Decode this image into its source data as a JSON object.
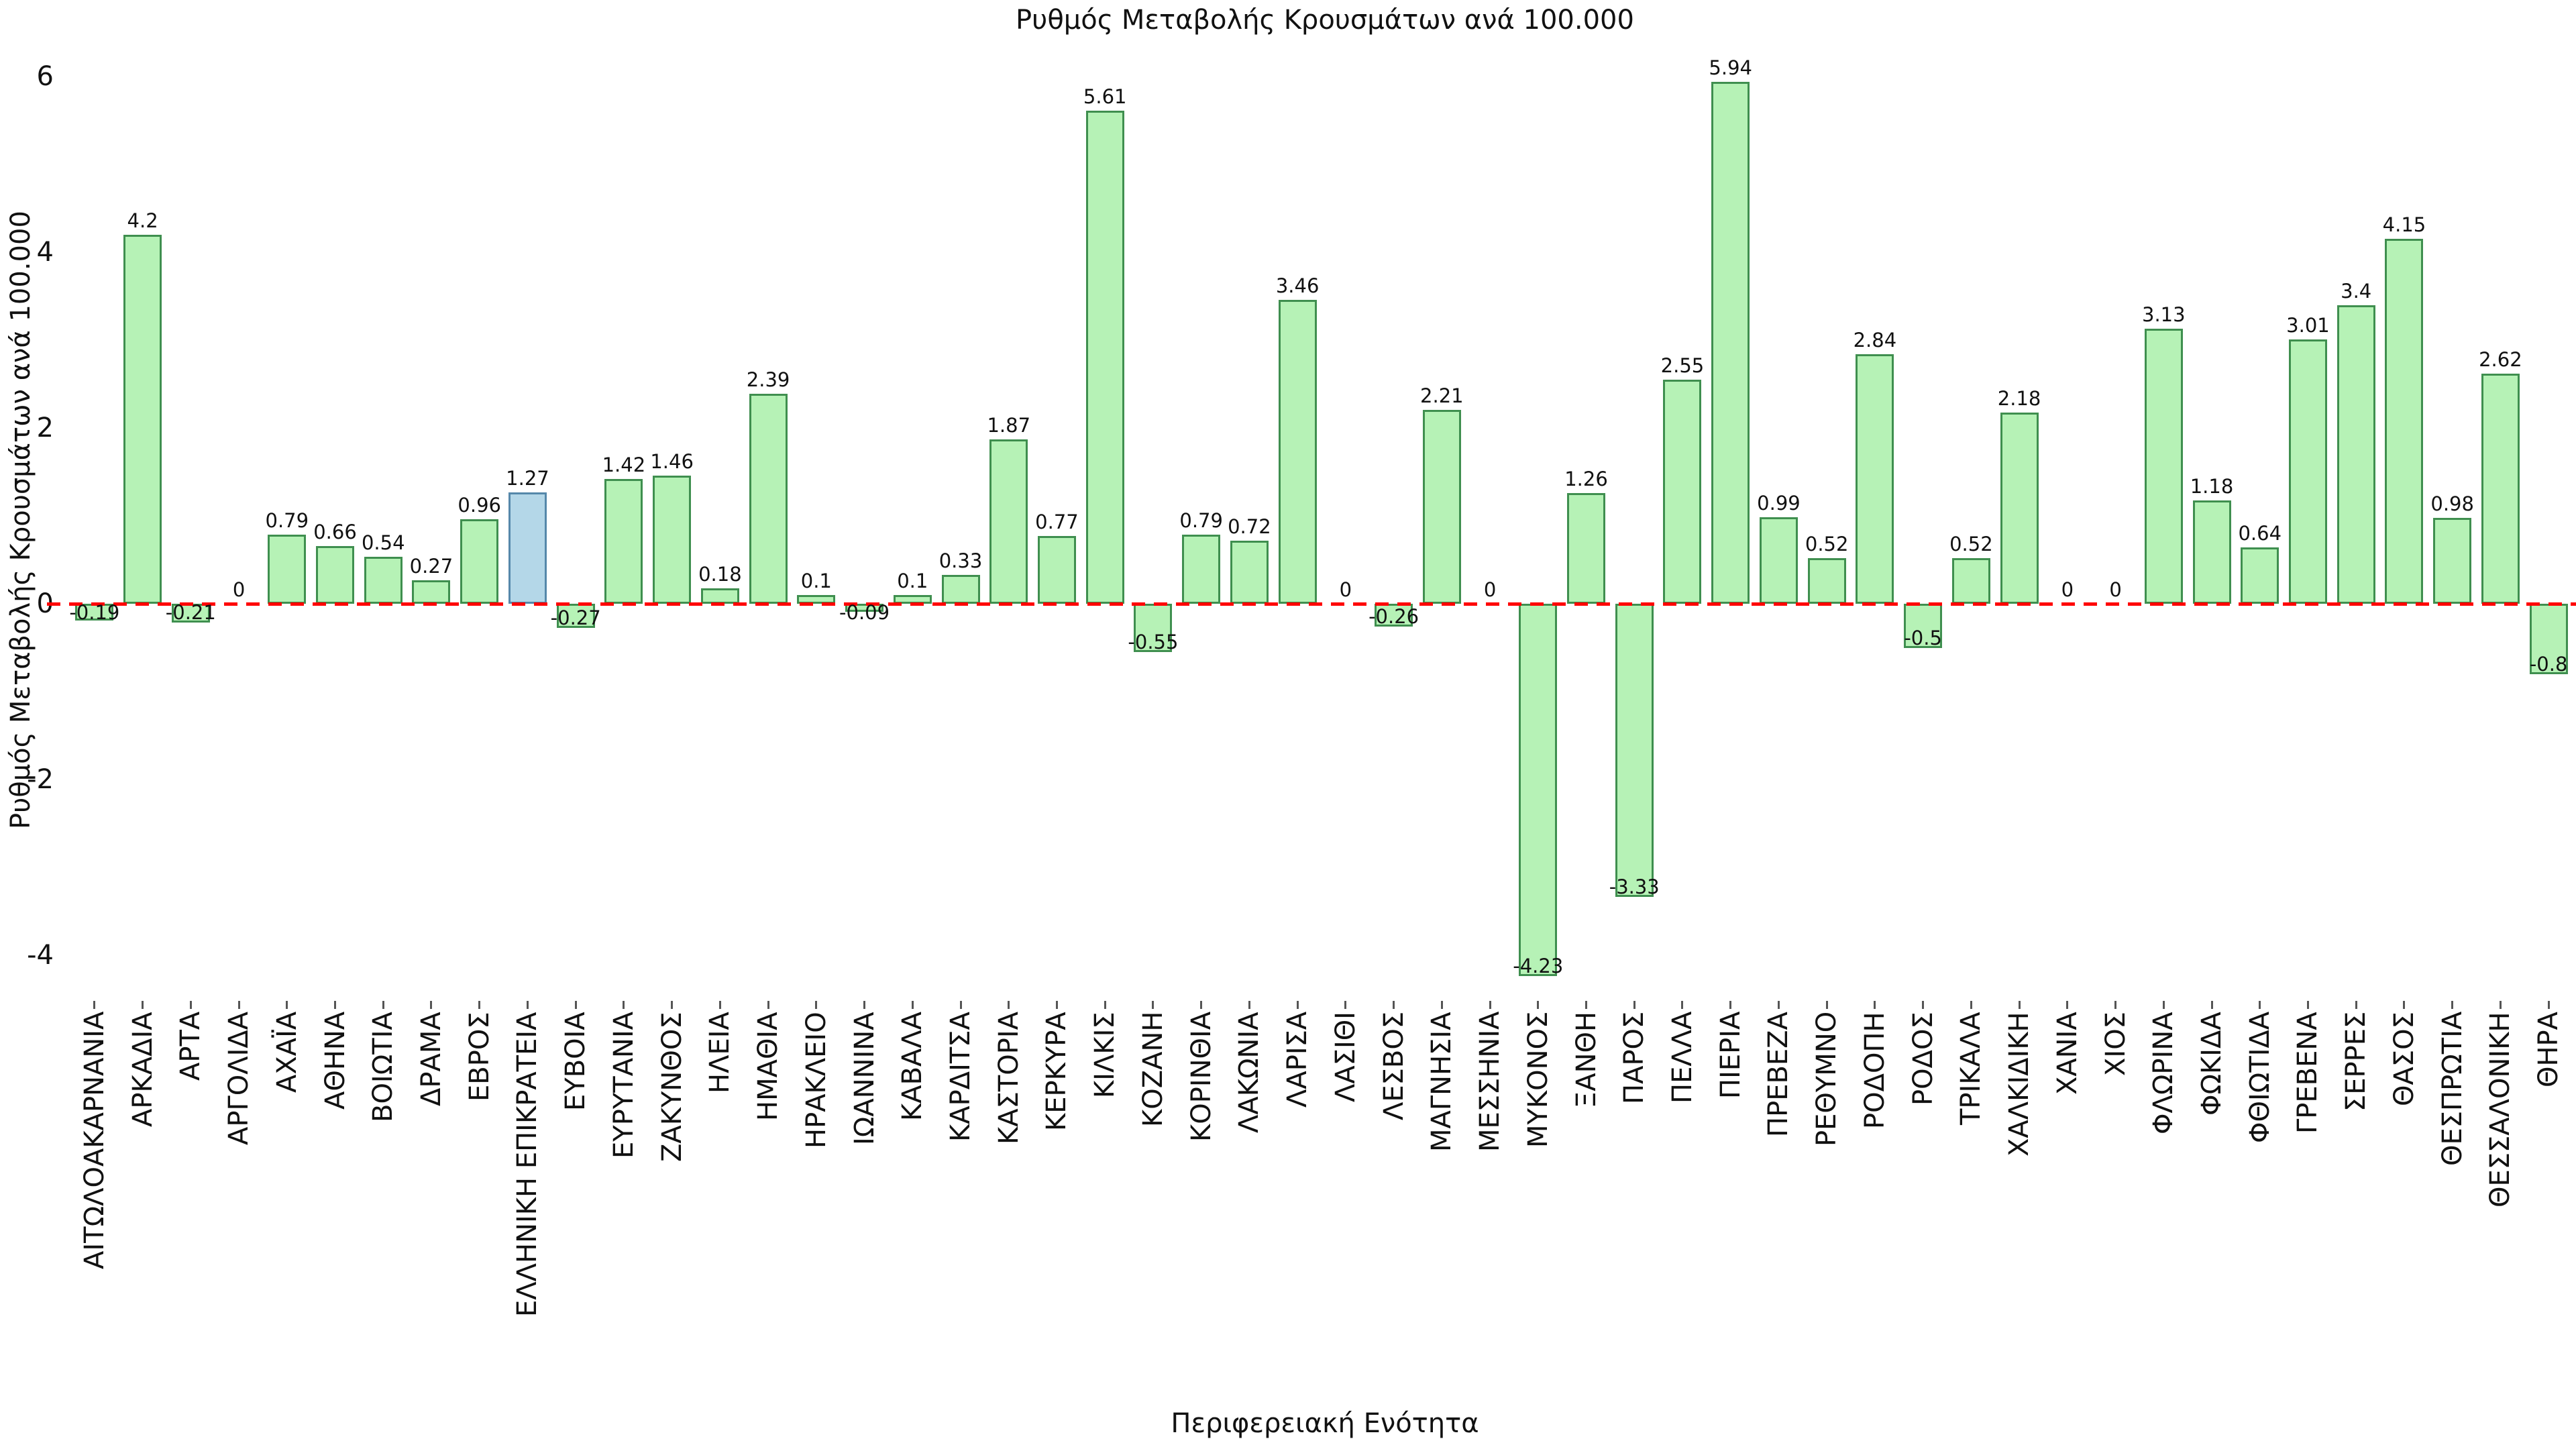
{
  "chart_data": {
    "type": "bar",
    "title": "Ρυθμός Μεταβολής Κρουσμάτων ανά 100.000",
    "xlabel": "Περιφερειακή Ενότητα",
    "ylabel": "Ρυθμός Μεταβολής Κρουσμάτων ανά 100.000",
    "categories": [
      "ΑΙΤΩΛΟΑΚΑΡΝΑΝΙΑ",
      "ΑΡΚΑΔΙΑ",
      "ΑΡΤΑ",
      "ΑΡΓΟΛΙΔΑ",
      "ΑΧΑΪΑ",
      "ΑΘΗΝΑ",
      "ΒΟΙΩΤΙΑ",
      "ΔΡΑΜΑ",
      "ΕΒΡΟΣ",
      "ΕΛΛΗΝΙΚΗ ΕΠΙΚΡΑΤΕΙΑ",
      "ΕΥΒΟΙΑ",
      "ΕΥΡΥΤΑΝΙΑ",
      "ΖΑΚΥΝΘΟΣ",
      "ΗΛΕΙΑ",
      "ΗΜΑΘΙΑ",
      "ΗΡΑΚΛΕΙΟ",
      "ΙΩΑΝΝΙΝΑ",
      "ΚΑΒΑΛΑ",
      "ΚΑΡΔΙΤΣΑ",
      "ΚΑΣΤΟΡΙΑ",
      "ΚΕΡΚΥΡΑ",
      "ΚΙΛΚΙΣ",
      "ΚΟΖΑΝΗ",
      "ΚΟΡΙΝΘΙΑ",
      "ΛΑΚΩΝΙΑ",
      "ΛΑΡΙΣΑ",
      "ΛΑΣΙΘΙ",
      "ΛΕΣΒΟΣ",
      "ΜΑΓΝΗΣΙΑ",
      "ΜΕΣΣΗΝΙΑ",
      "ΜΥΚΟΝΟΣ",
      "ΞΑΝΘΗ",
      "ΠΑΡΟΣ",
      "ΠΕΛΛΑ",
      "ΠΙΕΡΙΑ",
      "ΠΡΕΒΕΖΑ",
      "ΡΕΘΥΜΝΟ",
      "ΡΟΔΟΠΗ",
      "ΡΟΔΟΣ",
      "ΤΡΙΚΑΛΑ",
      "ΧΑΛΚΙΔΙΚΗ",
      "ΧΑΝΙΑ",
      "ΧΙΟΣ",
      "ΦΛΩΡΙΝΑ",
      "ΦΩΚΙΔΑ",
      "ΦΘΙΩΤΙΔΑ",
      "ΓΡΕΒΕΝΑ",
      "ΣΕΡΡΕΣ",
      "ΘΑΣΟΣ",
      "ΘΕΣΠΡΩΤΙΑ",
      "ΘΕΣΣΑΛΟΝΙΚΗ",
      "ΘΗΡΑ"
    ],
    "values": [
      -0.19,
      4.2,
      -0.21,
      0,
      0.79,
      0.66,
      0.54,
      0.27,
      0.96,
      1.27,
      -0.27,
      1.42,
      1.46,
      0.18,
      2.39,
      0.1,
      -0.09,
      0.1,
      0.33,
      1.87,
      0.77,
      5.61,
      -0.55,
      0.79,
      0.72,
      3.46,
      0,
      -0.26,
      2.21,
      0,
      -4.23,
      1.26,
      -3.33,
      2.55,
      5.94,
      0.99,
      0.52,
      2.84,
      -0.5,
      0.52,
      2.18,
      0,
      0,
      3.13,
      1.18,
      0.64,
      3.01,
      3.4,
      4.15,
      0.98,
      2.62,
      -0.8
    ],
    "highlight_category": "ΕΛΛΗΝΙΚΗ ΕΠΙΚΡΑΤΕΙΑ",
    "yticks": [
      -4,
      -2,
      0,
      2,
      4,
      6
    ],
    "ylim": [
      -4.5,
      6.45
    ],
    "grid": false,
    "legend": false,
    "zero_reference_line": true,
    "colors": {
      "bar_fill": "#b6f2b6",
      "bar_edge": "#3f8f4f",
      "highlight_fill": "#b4d7e8",
      "highlight_edge": "#5588aa",
      "zero_line": "#ff0000"
    }
  }
}
